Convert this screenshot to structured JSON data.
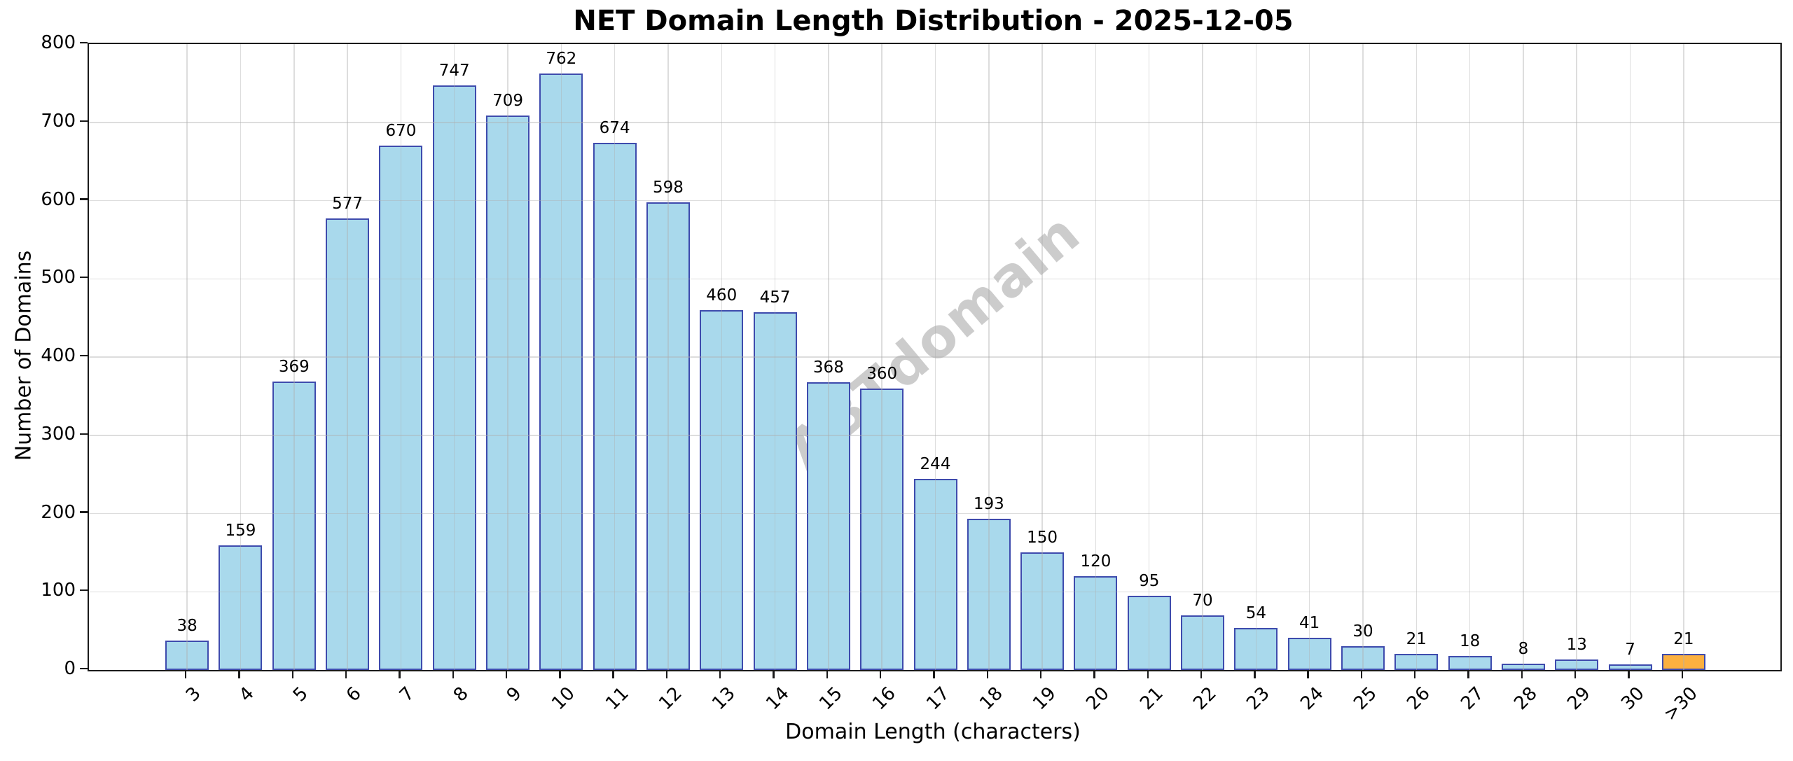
{
  "chart": {
    "title": "NET Domain Length Distribution - 2025-12-05",
    "xlabel": "Domain Length (characters)",
    "ylabel": "Number of Domains",
    "watermark": "ABTdomain"
  },
  "chart_data": {
    "type": "bar",
    "title": "NET Domain Length Distribution - 2025-12-05",
    "xlabel": "Domain Length (characters)",
    "ylabel": "Number of Domains",
    "categories": [
      "3",
      "4",
      "5",
      "6",
      "7",
      "8",
      "9",
      "10",
      "11",
      "12",
      "13",
      "14",
      "15",
      "16",
      "17",
      "18",
      "19",
      "20",
      "21",
      "22",
      "23",
      "24",
      "25",
      "26",
      "27",
      "28",
      "29",
      "30",
      ">30"
    ],
    "values": [
      38,
      159,
      369,
      577,
      670,
      747,
      709,
      762,
      674,
      598,
      460,
      457,
      368,
      360,
      244,
      193,
      150,
      120,
      95,
      70,
      54,
      41,
      30,
      21,
      18,
      8,
      13,
      7,
      21
    ],
    "ylim": [
      0,
      800
    ],
    "ytick_step": 100,
    "grid": true,
    "legend": "none",
    "watermark": "ABTdomain",
    "highlight_last_bar": true,
    "colors": {
      "bar_fill": "#A9D9EC",
      "bar_edge": "#3E4BAD",
      "highlight_fill": "#FBB040",
      "grid": "#DADADA",
      "watermark": "#CCCCCC",
      "axis": "#1A1A1A"
    }
  }
}
